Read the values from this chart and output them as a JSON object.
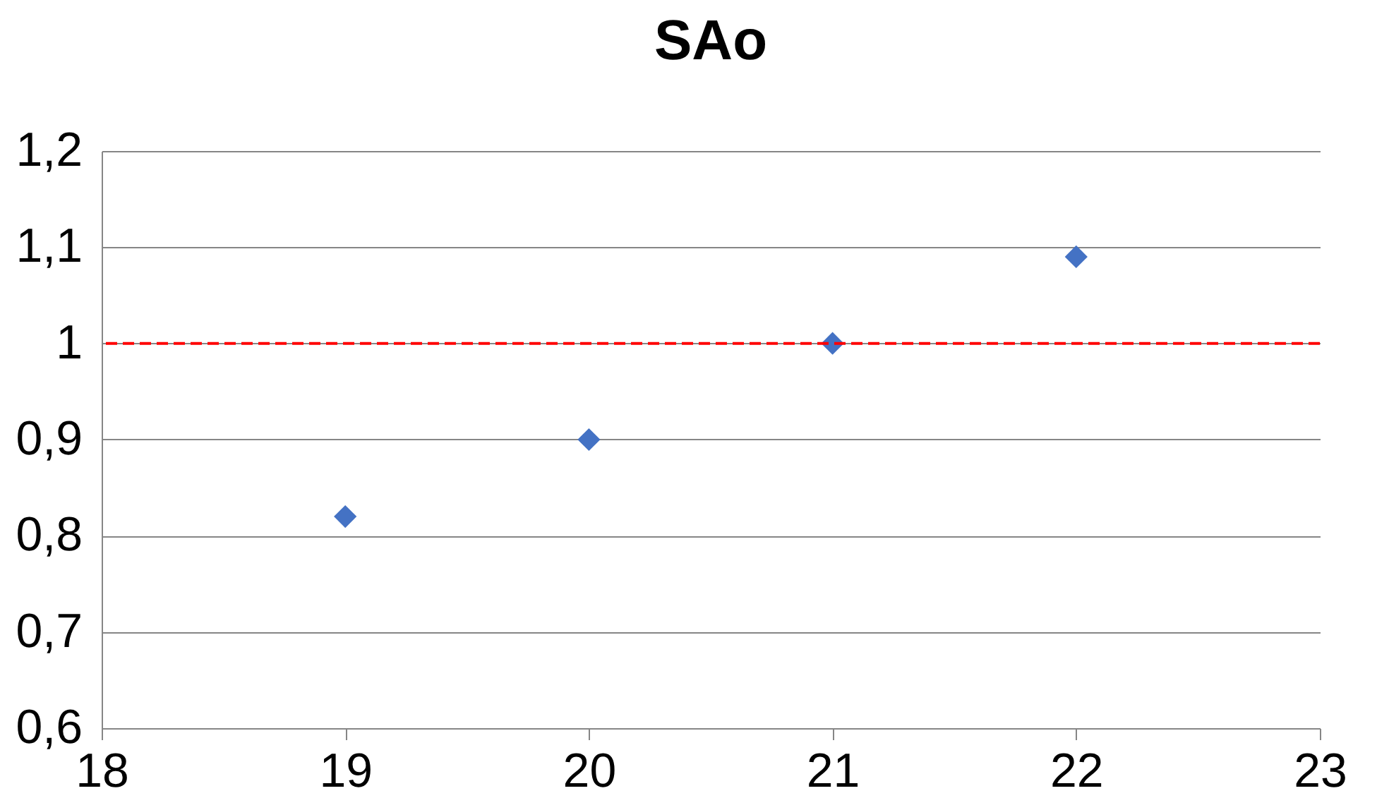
{
  "chart_data": {
    "type": "scatter",
    "title": "SAo",
    "x": [
      19,
      20,
      21,
      22
    ],
    "series": [
      {
        "color": "#4472c4",
        "values": [
          0.82,
          0.9,
          1.0,
          1.09
        ]
      }
    ],
    "xlim": [
      18,
      23
    ],
    "xticks": [
      18,
      19,
      20,
      21,
      22,
      23
    ],
    "ylim": [
      0.6,
      1.2
    ],
    "yticks": [
      {
        "value": 0.6,
        "label": "0,6"
      },
      {
        "value": 0.7,
        "label": "0,7"
      },
      {
        "value": 0.8,
        "label": "0,8"
      },
      {
        "value": 0.9,
        "label": "0,9"
      },
      {
        "value": 1,
        "label": "1"
      },
      {
        "value": 1.1,
        "label": "1,1"
      },
      {
        "value": 1.2,
        "label": "1,2"
      }
    ],
    "grid": "y",
    "marker": "diamond",
    "ref_lines": [
      {
        "axis": "y",
        "value": 1,
        "color": "#ff0000",
        "line_style": "dashed"
      }
    ]
  }
}
